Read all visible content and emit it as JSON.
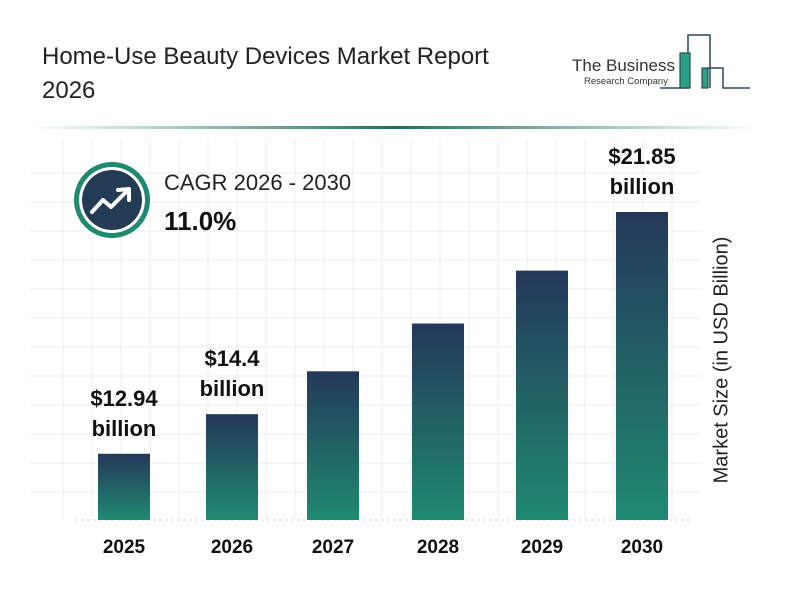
{
  "title": "Home-Use Beauty Devices Market Report 2026",
  "logo": {
    "line1": "The Business",
    "line2": "Research Company"
  },
  "cagr": {
    "label": "CAGR 2026 - 2030",
    "value": "11.0%",
    "icon": "trend-up-icon"
  },
  "colors": {
    "bar_top": "#24385a",
    "bar_bottom": "#1f8a70",
    "accent": "#1f8a70",
    "dark": "#243b55"
  },
  "chart_data": {
    "type": "bar",
    "title": "Home-Use Beauty Devices Market Report 2026",
    "categories": [
      "2025",
      "2026",
      "2027",
      "2028",
      "2029",
      "2030"
    ],
    "values": [
      12.94,
      14.4,
      15.98,
      17.74,
      19.69,
      21.85
    ],
    "data_labels": [
      {
        "index": 0,
        "line1": "$12.94",
        "line2": "billion"
      },
      {
        "index": 1,
        "line1": "$14.4",
        "line2": "billion"
      },
      {
        "index": 5,
        "line1": "$21.85",
        "line2": "billion"
      }
    ],
    "xlabel": "",
    "ylabel": "Market Size (in USD Billion)",
    "grid": true,
    "legend": "none"
  }
}
